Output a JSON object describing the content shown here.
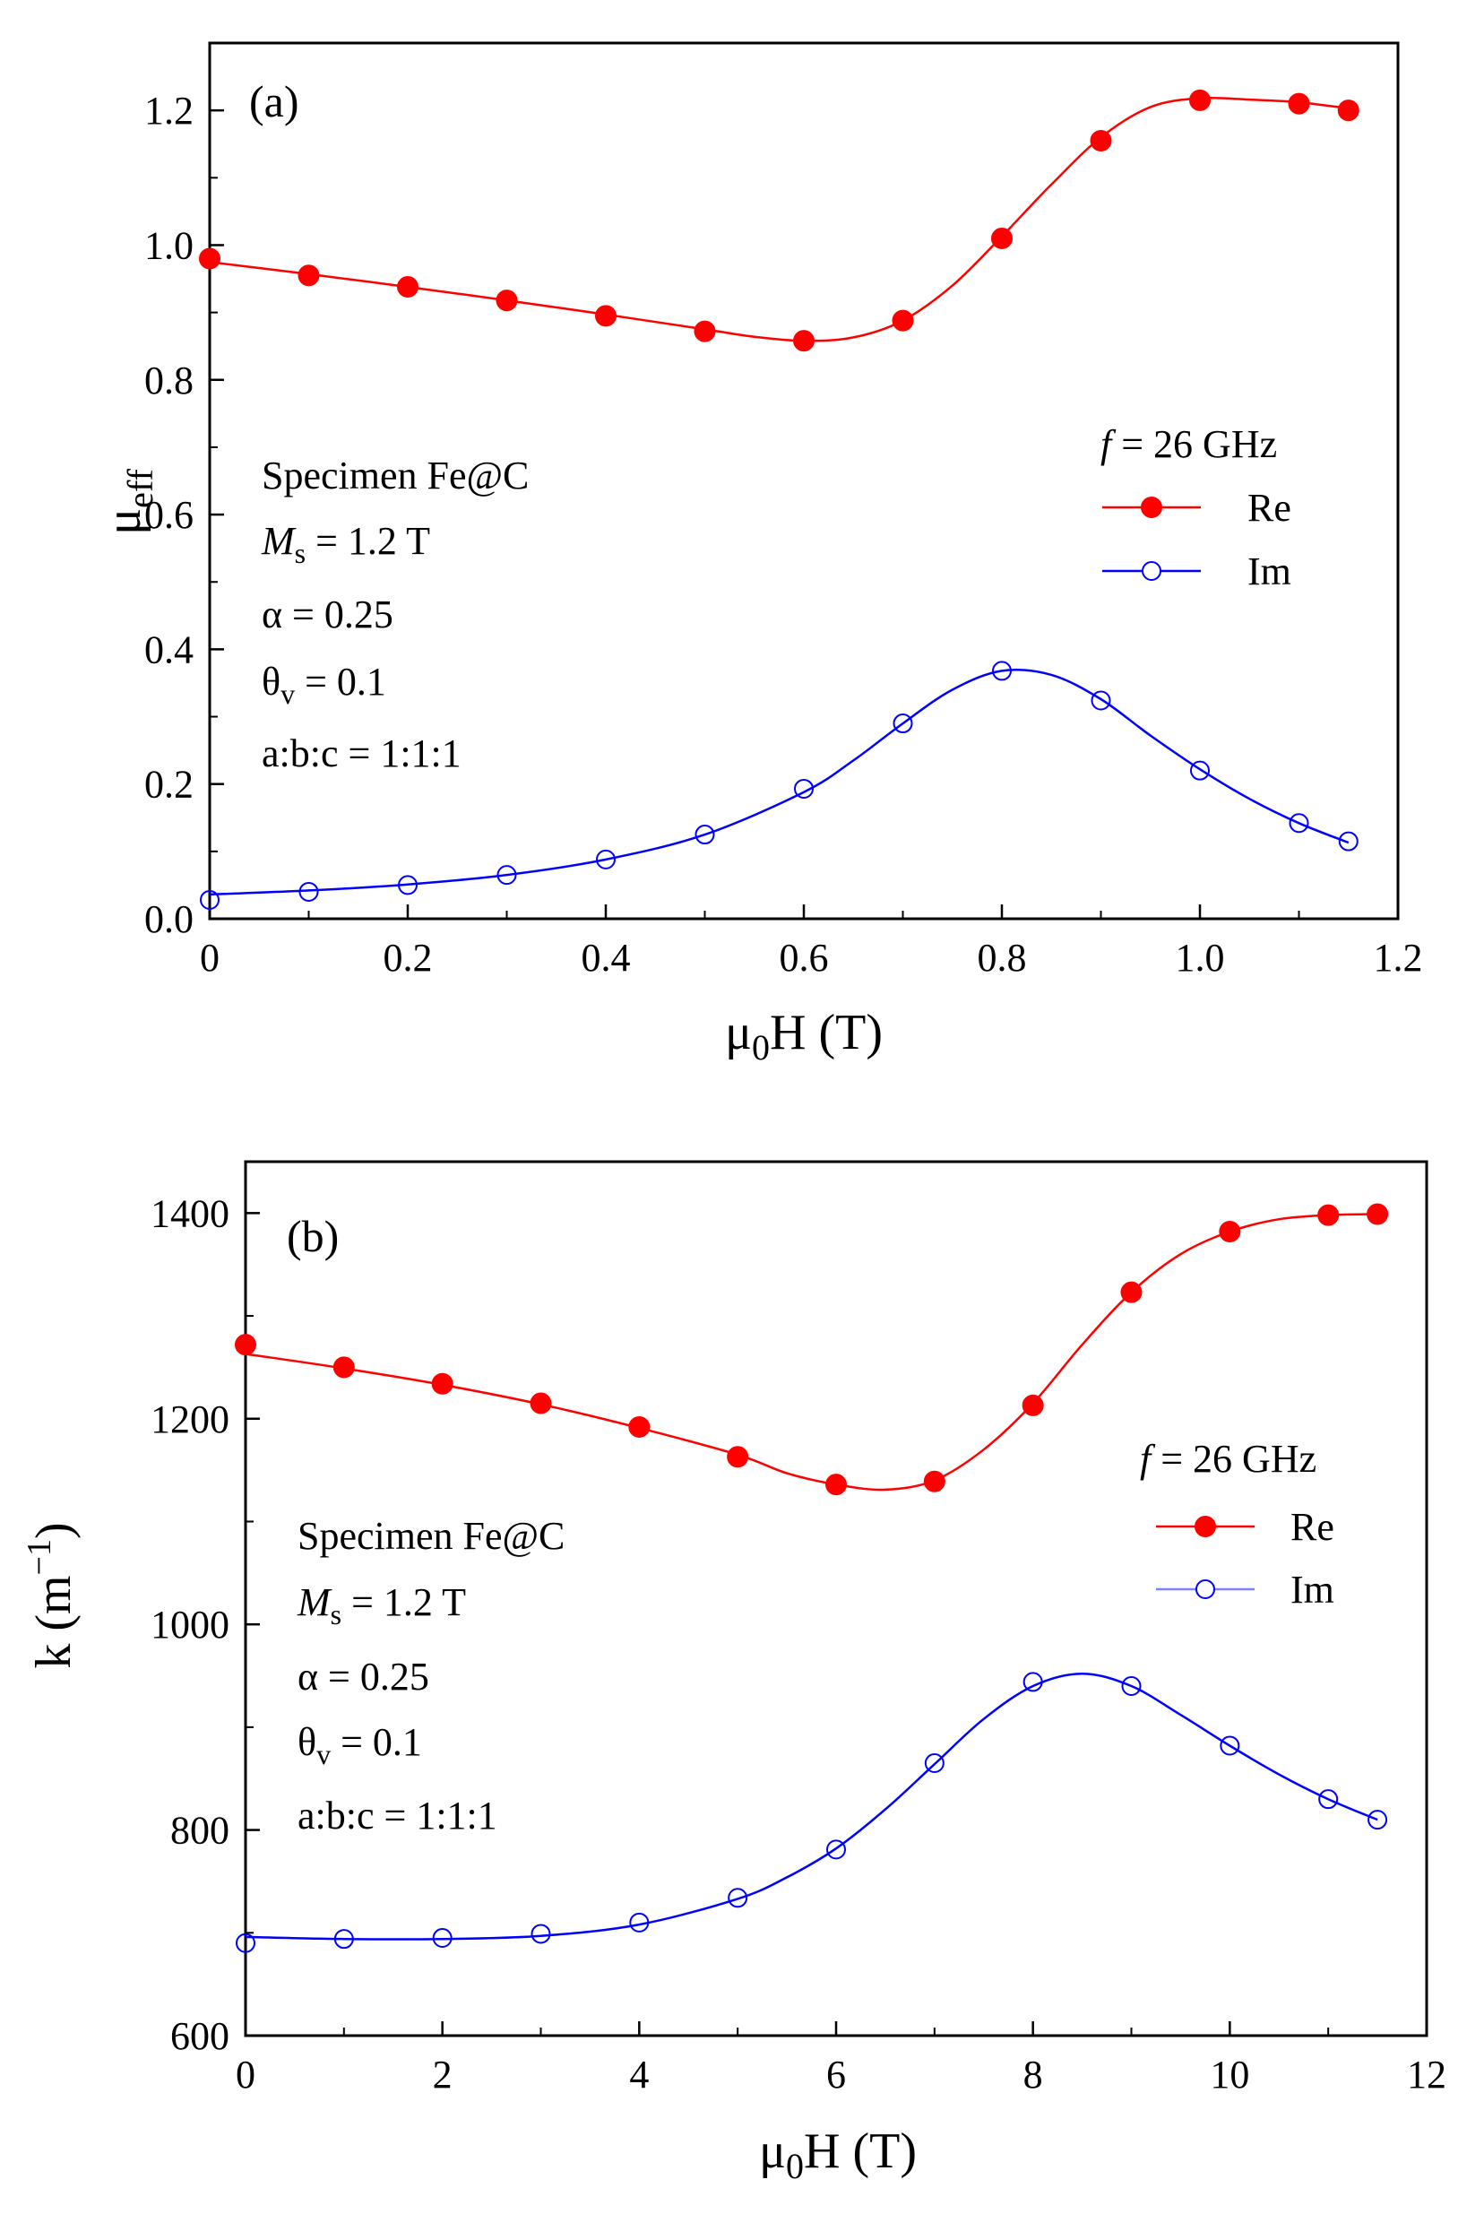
{
  "chart_data": [
    {
      "type": "line",
      "panel_label": "(a)",
      "xlabel": "μ0H (T)",
      "ylabel": "μeff",
      "xlim": [
        0,
        1.2
      ],
      "ylim": [
        0,
        1.3
      ],
      "xticks": [
        0,
        0.2,
        0.4,
        0.6,
        0.8,
        1.0,
        1.2
      ],
      "xtick_labels": [
        "0",
        "0.2",
        "0.4",
        "0.6",
        "0.8",
        "1.0",
        "1.2"
      ],
      "yticks": [
        0,
        0.2,
        0.4,
        0.6,
        0.8,
        1.0,
        1.2
      ],
      "ytick_labels": [
        "0.0",
        "0.2",
        "0.4",
        "0.6",
        "0.8",
        "1.0",
        "1.2"
      ],
      "legend": {
        "title_var": "f",
        "title_rest": " = 26 GHz",
        "position": "right",
        "entries": [
          "Re",
          "Im"
        ]
      },
      "annotations": {
        "specimen": "Specimen Fe@C",
        "ms_sym": "M",
        "ms_sub": "s",
        "ms_rest": " = 1.2 T",
        "alpha": "α = 0.25",
        "theta_sym": "θ",
        "theta_sub": "v",
        "theta_rest": " = 0.1",
        "ratio": "a:b:c = 1:1:1"
      },
      "series": [
        {
          "name": "Re",
          "color": "#ff0000",
          "marker": "filled-circle",
          "x": [
            0,
            0.1,
            0.2,
            0.3,
            0.4,
            0.5,
            0.6,
            0.7,
            0.8,
            0.9,
            1.0,
            1.1,
            1.15
          ],
          "y": [
            0.98,
            0.955,
            0.938,
            0.918,
            0.895,
            0.872,
            0.858,
            0.888,
            1.01,
            1.155,
            1.215,
            1.21,
            1.2
          ]
        },
        {
          "name": "Im",
          "color": "#0000ff",
          "marker": "open-circle",
          "x": [
            0,
            0.1,
            0.2,
            0.3,
            0.4,
            0.5,
            0.6,
            0.7,
            0.8,
            0.9,
            1.0,
            1.1,
            1.15
          ],
          "y": [
            0.028,
            0.04,
            0.05,
            0.065,
            0.088,
            0.125,
            0.193,
            0.29,
            0.368,
            0.324,
            0.22,
            0.142,
            0.115
          ]
        }
      ],
      "fit_curves": [
        {
          "name": "Re",
          "color": "#ff0000",
          "x": [
            0,
            0.1,
            0.2,
            0.3,
            0.4,
            0.5,
            0.55,
            0.6,
            0.65,
            0.7,
            0.75,
            0.8,
            0.85,
            0.9,
            0.95,
            1.0,
            1.05,
            1.1,
            1.15
          ],
          "y": [
            0.975,
            0.957,
            0.938,
            0.918,
            0.897,
            0.875,
            0.864,
            0.858,
            0.863,
            0.888,
            0.94,
            1.013,
            1.09,
            1.16,
            1.205,
            1.218,
            1.216,
            1.212,
            1.203
          ]
        },
        {
          "name": "Im",
          "color": "#0000ff",
          "x": [
            0,
            0.1,
            0.2,
            0.3,
            0.4,
            0.5,
            0.6,
            0.65,
            0.7,
            0.75,
            0.8,
            0.85,
            0.9,
            0.95,
            1.0,
            1.05,
            1.1,
            1.15
          ],
          "y": [
            0.036,
            0.042,
            0.051,
            0.065,
            0.088,
            0.125,
            0.188,
            0.235,
            0.29,
            0.34,
            0.368,
            0.362,
            0.326,
            0.272,
            0.222,
            0.178,
            0.142,
            0.113
          ]
        }
      ]
    },
    {
      "type": "line",
      "panel_label": "(b)",
      "xlabel": "μ0H (T)",
      "ylabel": "k (m−1)",
      "xlim": [
        0,
        12
      ],
      "ylim": [
        600,
        1450
      ],
      "xticks": [
        0,
        2,
        4,
        6,
        8,
        10,
        12
      ],
      "xtick_labels": [
        "0",
        "2",
        "4",
        "6",
        "8",
        "10",
        "12"
      ],
      "yticks": [
        600,
        800,
        1000,
        1200,
        1400
      ],
      "ytick_labels": [
        "600",
        "800",
        "1000",
        "1200",
        "1400"
      ],
      "legend": {
        "title_var": "f",
        "title_rest": " = 26 GHz",
        "position": "right",
        "entries": [
          "Re",
          "Im"
        ]
      },
      "annotations": {
        "specimen": "Specimen Fe@C",
        "ms_sym": "M",
        "ms_sub": "s",
        "ms_rest": " = 1.2 T",
        "alpha": "α = 0.25",
        "theta_sym": "θ",
        "theta_sub": "v",
        "theta_rest": " = 0.1",
        "ratio": "a:b:c = 1:1:1"
      },
      "series": [
        {
          "name": "Re",
          "color": "#ff0000",
          "marker": "filled-circle",
          "x": [
            0,
            1,
            2,
            3,
            4,
            5,
            6,
            7,
            8,
            9,
            10,
            11,
            11.5
          ],
          "y": [
            1272,
            1250,
            1234,
            1215,
            1192,
            1163,
            1136,
            1139,
            1213,
            1323,
            1382,
            1398,
            1399
          ]
        },
        {
          "name": "Im",
          "color": "#0000ff",
          "marker": "open-circle",
          "x": [
            0,
            1,
            2,
            3,
            4,
            5,
            6,
            7,
            8,
            9,
            10,
            11,
            11.5
          ],
          "y": [
            690,
            694,
            695,
            699,
            710,
            734,
            781,
            865,
            944,
            940,
            882,
            830,
            810
          ]
        }
      ],
      "fit_curves": [
        {
          "name": "Re",
          "color": "#ff0000",
          "x": [
            0,
            1,
            2,
            3,
            4,
            5,
            5.5,
            6,
            6.5,
            7,
            7.5,
            8,
            8.5,
            9,
            9.5,
            10,
            10.5,
            11,
            11.5
          ],
          "y": [
            1263,
            1249,
            1233,
            1214,
            1191,
            1165,
            1147,
            1136,
            1131,
            1140,
            1170,
            1215,
            1272,
            1323,
            1360,
            1382,
            1394,
            1398,
            1399
          ]
        },
        {
          "name": "Im",
          "color": "#0000ff",
          "x": [
            0,
            1,
            2,
            3,
            4,
            5,
            5.5,
            6,
            6.5,
            7,
            7.5,
            8,
            8.5,
            9,
            9.5,
            10,
            10.5,
            11,
            11.5
          ],
          "y": [
            696,
            694,
            694,
            697,
            708,
            733,
            754,
            782,
            820,
            864,
            908,
            940,
            952,
            940,
            912,
            882,
            854,
            830,
            810
          ]
        }
      ]
    }
  ]
}
